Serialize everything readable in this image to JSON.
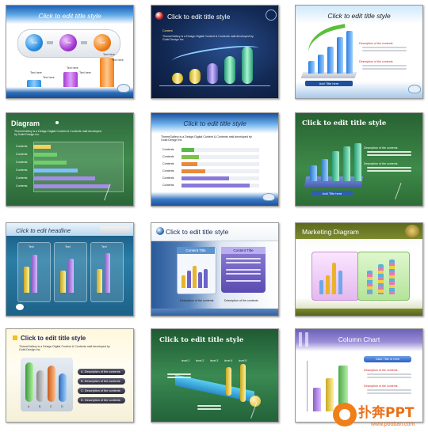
{
  "slides": [
    {
      "title": "Click to edit title style",
      "nodes": [
        "Text",
        "Text",
        "Text"
      ],
      "labels": [
        "Text here",
        "Text here",
        "Text here",
        "Text here",
        "Text here",
        "Text here"
      ]
    },
    {
      "title": "Click to edit title style",
      "sub": "Content",
      "body": "ThemeGallery is a Design Digital Content & Contents mall developed by Guild Design Inc."
    },
    {
      "title": "Click to edit title style",
      "labels": [
        "Description of the contents",
        "Description of the contents"
      ],
      "button": "Add Title here"
    },
    {
      "title": "Diagram",
      "body": "ThemeGallery is a Design Digital Content & Contents mall developed by Guild Design Inc.",
      "rows": [
        "Contents",
        "Contents",
        "Contents",
        "Contents",
        "Contents",
        "Contents"
      ]
    },
    {
      "title": "Click to edit title style",
      "body": "ThemeGallery is a Design Digital Content & Contents mall developed by Guild Design Inc.",
      "rows": [
        "Contents",
        "Contents",
        "Contents",
        "Contents",
        "Contents",
        "Contents"
      ]
    },
    {
      "title": "Click to edit title style",
      "labels": [
        "Description of the contents",
        "Description of the contents"
      ],
      "button": "Add Title here"
    },
    {
      "title": "Click to edit headline",
      "cols": [
        "Text",
        "Text",
        "Text"
      ]
    },
    {
      "title": "Click to edit title style",
      "left": "Content Title",
      "right": "Content Title",
      "caption": "Description of the contents"
    },
    {
      "title": "Marketing Diagram"
    },
    {
      "title": "Click to edit title style",
      "body": "ThemeGallery is a Design Digital Content & Contents mall developed by Guild Design Inc.",
      "items": [
        "A. Description of the contents",
        "B. Description of the contents",
        "C. Description of the contents",
        "D. Description of the contents"
      ],
      "tubes": [
        "A",
        "B",
        "C",
        "D"
      ]
    },
    {
      "title": "Click to edit title style",
      "levels": [
        "level 1",
        "level 2",
        "level 3",
        "level 4",
        "level 5"
      ]
    },
    {
      "title": "Column Chart",
      "button": "Click Title in here",
      "labels": [
        "Description of the contents",
        "Description of the contents"
      ]
    }
  ],
  "watermark": {
    "brand": "扑奔PPT",
    "url": "www.pooban.com"
  },
  "colors": {
    "accent_blue": "#1d60b5",
    "accent_green": "#3f8a4c",
    "accent_orange": "#f07f1a",
    "accent_purple": "#8d5cc7"
  }
}
